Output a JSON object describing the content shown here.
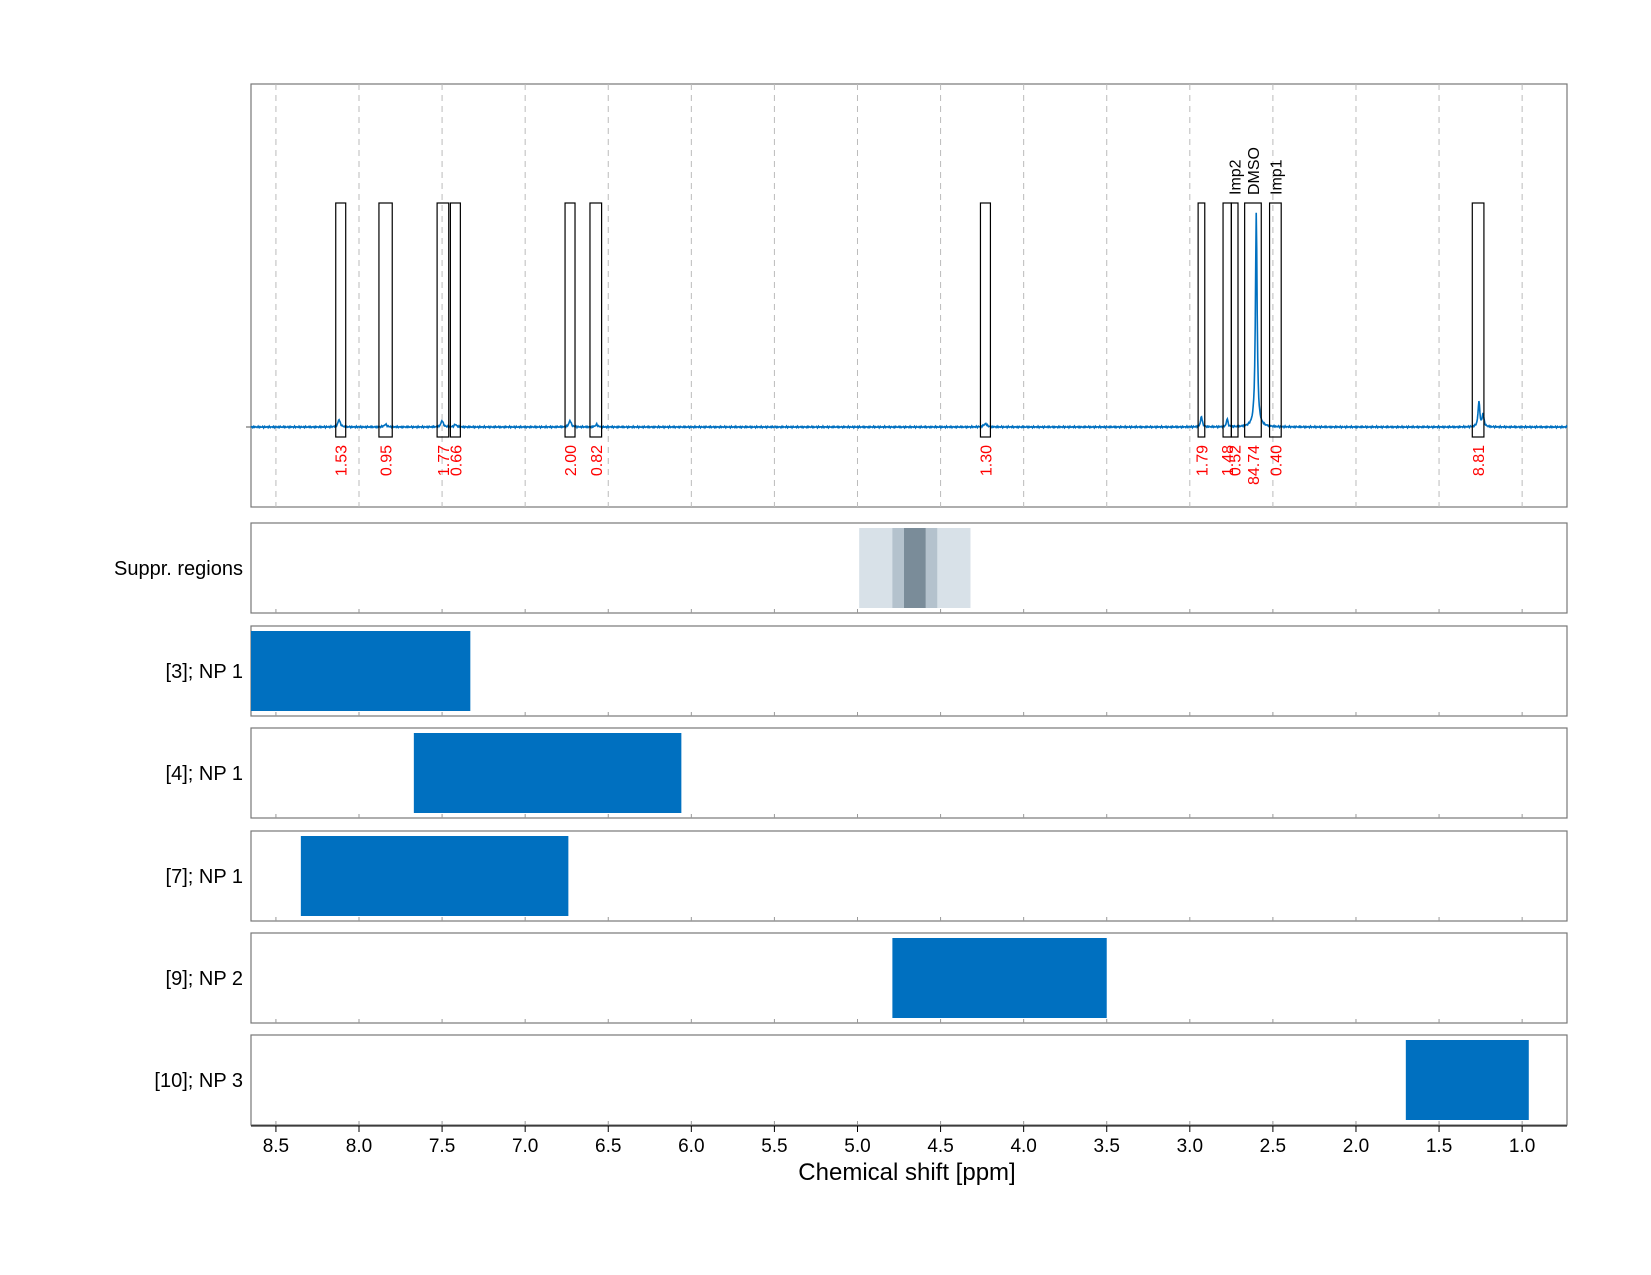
{
  "chart_data": {
    "type": "line",
    "title": "",
    "xlabel": "Chemical shift [ppm]",
    "ylabel": "",
    "xlim": [
      8.65,
      0.73
    ],
    "x_reversed": true,
    "x_ticks": [
      "8.5",
      "8.0",
      "7.5",
      "7.0",
      "6.5",
      "6.0",
      "5.5",
      "5.0",
      "4.5",
      "4.0",
      "3.5",
      "3.0",
      "2.5",
      "2.0",
      "1.5",
      "1.0"
    ],
    "x_tick_values": [
      8.5,
      8.0,
      7.5,
      7.0,
      6.5,
      6.0,
      5.5,
      5.0,
      4.5,
      4.0,
      3.5,
      3.0,
      2.5,
      2.0,
      1.5,
      1.0
    ],
    "grid": true,
    "spectrum": {
      "color": "#0070c0",
      "baseline": 0,
      "peaks": [
        {
          "ppm": 8.12,
          "height": 0.035,
          "width": 0.008
        },
        {
          "ppm": 7.84,
          "height": 0.012,
          "width": 0.01
        },
        {
          "ppm": 7.5,
          "height": 0.03,
          "width": 0.008
        },
        {
          "ppm": 7.42,
          "height": 0.012,
          "width": 0.008
        },
        {
          "ppm": 6.73,
          "height": 0.03,
          "width": 0.008
        },
        {
          "ppm": 6.57,
          "height": 0.012,
          "width": 0.008
        },
        {
          "ppm": 4.23,
          "height": 0.015,
          "width": 0.012
        },
        {
          "ppm": 2.93,
          "height": 0.05,
          "width": 0.006
        },
        {
          "ppm": 2.775,
          "height": 0.04,
          "width": 0.005
        },
        {
          "ppm": 2.6,
          "height": 1.0,
          "width": 0.006
        },
        {
          "ppm": 1.26,
          "height": 0.12,
          "width": 0.006
        },
        {
          "ppm": 1.235,
          "height": 0.06,
          "width": 0.006
        }
      ]
    },
    "integration_regions": [
      {
        "from": 8.14,
        "to": 8.08,
        "integral": "1.53"
      },
      {
        "from": 7.88,
        "to": 7.8,
        "integral": "0.95"
      },
      {
        "from": 7.53,
        "to": 7.46,
        "integral": "1.77"
      },
      {
        "from": 7.45,
        "to": 7.39,
        "integral": "0.66"
      },
      {
        "from": 6.76,
        "to": 6.7,
        "integral": "2.00"
      },
      {
        "from": 6.61,
        "to": 6.54,
        "integral": "0.82"
      },
      {
        "from": 4.26,
        "to": 4.2,
        "integral": "1.30"
      },
      {
        "from": 2.95,
        "to": 2.91,
        "integral": "1.79"
      },
      {
        "from": 2.8,
        "to": 2.75,
        "integral": "1.48"
      },
      {
        "from": 2.75,
        "to": 2.71,
        "integral": "0.52",
        "label": "Imp2"
      },
      {
        "from": 2.67,
        "to": 2.57,
        "integral": "84.74",
        "label": "DMSO"
      },
      {
        "from": 2.52,
        "to": 2.45,
        "integral": "0.40",
        "label": "Imp1"
      },
      {
        "from": 1.3,
        "to": 1.23,
        "integral": "8.81"
      }
    ],
    "tracks": [
      {
        "label": "Suppr. regions",
        "kind": "suppression",
        "bands": [
          {
            "from": 4.99,
            "to": 4.32,
            "shade": "#d8e1e8"
          },
          {
            "from": 4.79,
            "to": 4.52,
            "shade": "#b4c2cd"
          },
          {
            "from": 4.72,
            "to": 4.59,
            "shade": "#7a8c99"
          }
        ]
      },
      {
        "label": "[3]; NP 1",
        "kind": "range",
        "from": 8.65,
        "to": 7.33
      },
      {
        "label": "[4]; NP 1",
        "kind": "range",
        "from": 7.67,
        "to": 6.06
      },
      {
        "label": "[7]; NP 1",
        "kind": "range",
        "from": 8.35,
        "to": 6.74
      },
      {
        "label": "[9]; NP 2",
        "kind": "range",
        "from": 4.79,
        "to": 3.5
      },
      {
        "label": "[10]; NP 3",
        "kind": "range",
        "from": 1.7,
        "to": 0.96
      }
    ],
    "colors": {
      "line": "#0070c0",
      "range_fill": "#0070c0",
      "integral_text": "#ff0000",
      "frame": "#777777",
      "grid": "#bbbbbb"
    }
  }
}
